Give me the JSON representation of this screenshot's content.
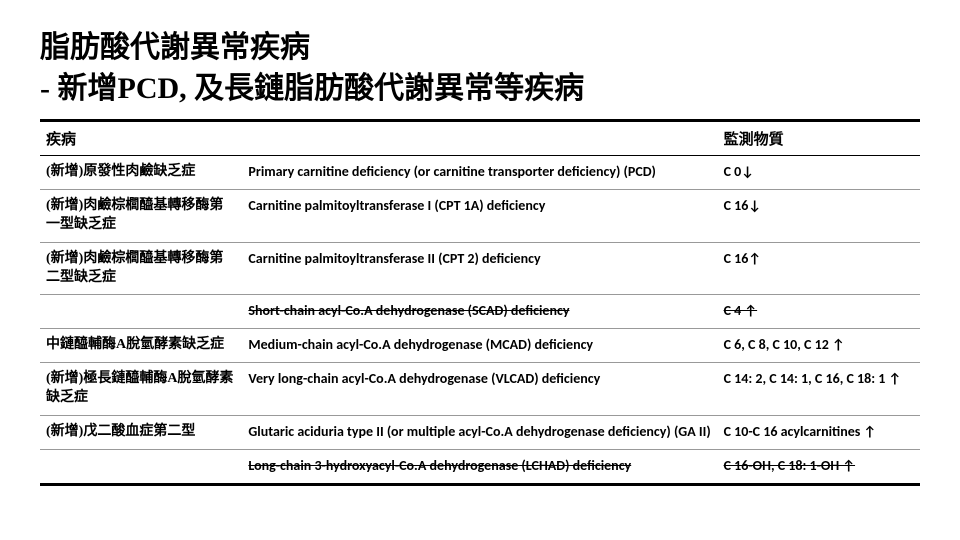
{
  "title_line1": "脂肪酸代謝異常疾病",
  "title_line2": "- 新增PCD, 及長鏈脂肪酸代謝異常等疾病",
  "headers": {
    "disease": "疾病",
    "marker": "監測物質"
  },
  "rows": [
    {
      "cn": "(新增)原發性肉鹼缺乏症",
      "en": "Primary carnitine deficiency (or carnitine transporter deficiency) (PCD)",
      "marker": "C 0↓",
      "strike": false
    },
    {
      "cn": "(新增)肉鹼棕櫚醯基轉移酶第一型缺乏症",
      "en": "Carnitine palmitoyltransferase I (CPT 1A) deficiency",
      "marker": "C 16↓",
      "strike": false
    },
    {
      "cn": "(新增)肉鹼棕櫚醯基轉移酶第二型缺乏症",
      "en": "Carnitine palmitoyltransferase II (CPT 2) deficiency",
      "marker": "C 16↑",
      "strike": false
    },
    {
      "cn": "",
      "en": "Short-chain acyl-Co.A dehydrogenase (SCAD) deficiency",
      "marker": "C 4 ↑",
      "strike": true
    },
    {
      "cn": "中鏈醯輔酶A脫氫酵素缺乏症",
      "en": "Medium-chain acyl-Co.A dehydrogenase (MCAD) deficiency",
      "marker": "C 6, C 8, C 10, C 12 ↑",
      "strike": false
    },
    {
      "cn": "(新增)極長鏈醯輔酶A脫氫酵素缺乏症",
      "en": "Very long-chain acyl-Co.A dehydrogenase (VLCAD) deficiency",
      "marker": "C 14: 2, C 14: 1, C 16, C 18: 1 ↑",
      "strike": false
    },
    {
      "cn": "(新增)戊二酸血症第二型",
      "en": "Glutaric aciduria type II (or multiple acyl-Co.A dehydrogenase deficiency) (GA II)",
      "marker": "C 10-C 16 acylcarnitines ↑",
      "strike": false
    },
    {
      "cn": "",
      "en": "Long-chain 3-hydroxyacyl-Co.A dehydrogenase (LCHAD) deficiency",
      "marker": "C 16-OH, C 18: 1-OH ↑",
      "strike": true
    }
  ]
}
